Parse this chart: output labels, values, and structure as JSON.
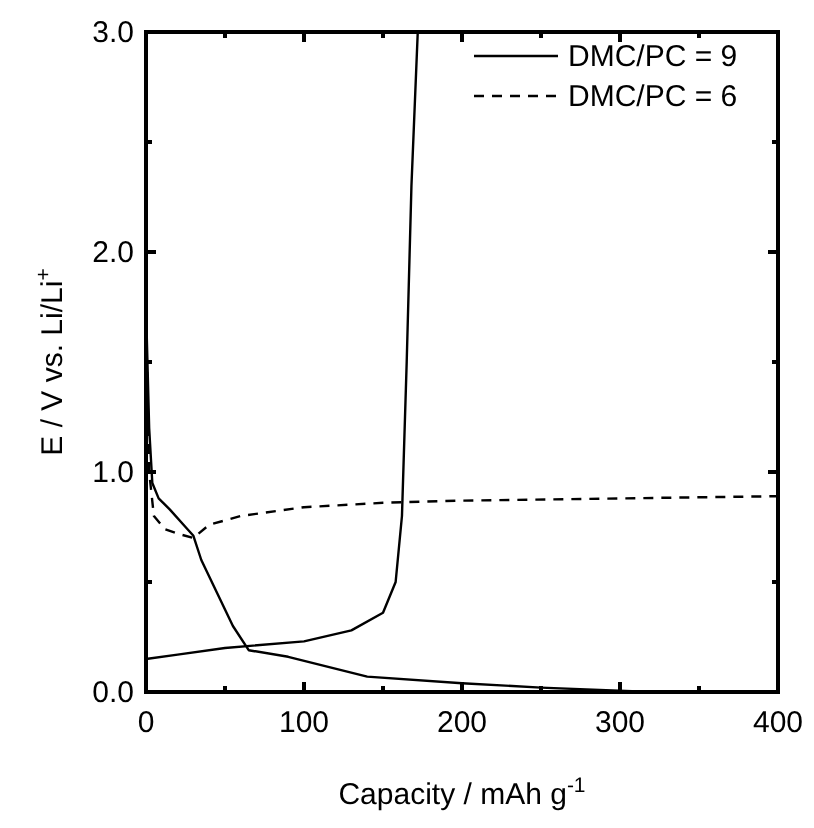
{
  "chart_data": {
    "type": "line",
    "xlabel": "Capacity / mAh g$^{-1}$",
    "ylabel": "E / V vs. Li/Li$^{+}$",
    "xlim": [
      0,
      400
    ],
    "ylim": [
      0,
      3
    ],
    "xticks": [
      0,
      {
        "value": 50,
        "label": null
      },
      100,
      {
        "value": 150,
        "label": null
      },
      200,
      {
        "value": 250,
        "label": null
      },
      300,
      {
        "value": 350,
        "label": null
      },
      400
    ],
    "yticks": [
      {
        "value": 0,
        "label": "0.0"
      },
      {
        "value": 0.5,
        "label": null
      },
      {
        "value": 1,
        "label": "1.0"
      },
      {
        "value": 1.5,
        "label": null
      },
      {
        "value": 2,
        "label": "2.0"
      },
      {
        "value": 2.5,
        "label": null
      },
      {
        "value": 3,
        "label": "3.0"
      }
    ],
    "legend": "top right",
    "grid": false,
    "marker": "none",
    "series": [
      {
        "name": "DMC/PC = 9",
        "color": "#000000",
        "line_style": "solid",
        "x": [
          0,
          2,
          4,
          8,
          15,
          25,
          30,
          35,
          45,
          55,
          65,
          90,
          140,
          200,
          250,
          320,
          null,
          0,
          20,
          50,
          100,
          130,
          150,
          158,
          162,
          165,
          168,
          172
        ],
        "values": [
          1.75,
          1.2,
          0.95,
          0.88,
          0.83,
          0.75,
          0.71,
          0.6,
          0.45,
          0.3,
          0.19,
          0.16,
          0.07,
          0.04,
          0.02,
          0,
          null,
          0.15,
          0.17,
          0.2,
          0.23,
          0.28,
          0.36,
          0.5,
          0.8,
          1.5,
          2.3,
          3.0
        ]
      },
      {
        "name": "DMC/PC = 6",
        "color": "#000000",
        "line_style": "dashed",
        "x": [
          0,
          2,
          5,
          12,
          20,
          30,
          40,
          60,
          100,
          150,
          200,
          300,
          400
        ],
        "values": [
          1.7,
          1.0,
          0.8,
          0.74,
          0.72,
          0.7,
          0.76,
          0.8,
          0.84,
          0.86,
          0.87,
          0.88,
          0.89
        ]
      }
    ]
  }
}
